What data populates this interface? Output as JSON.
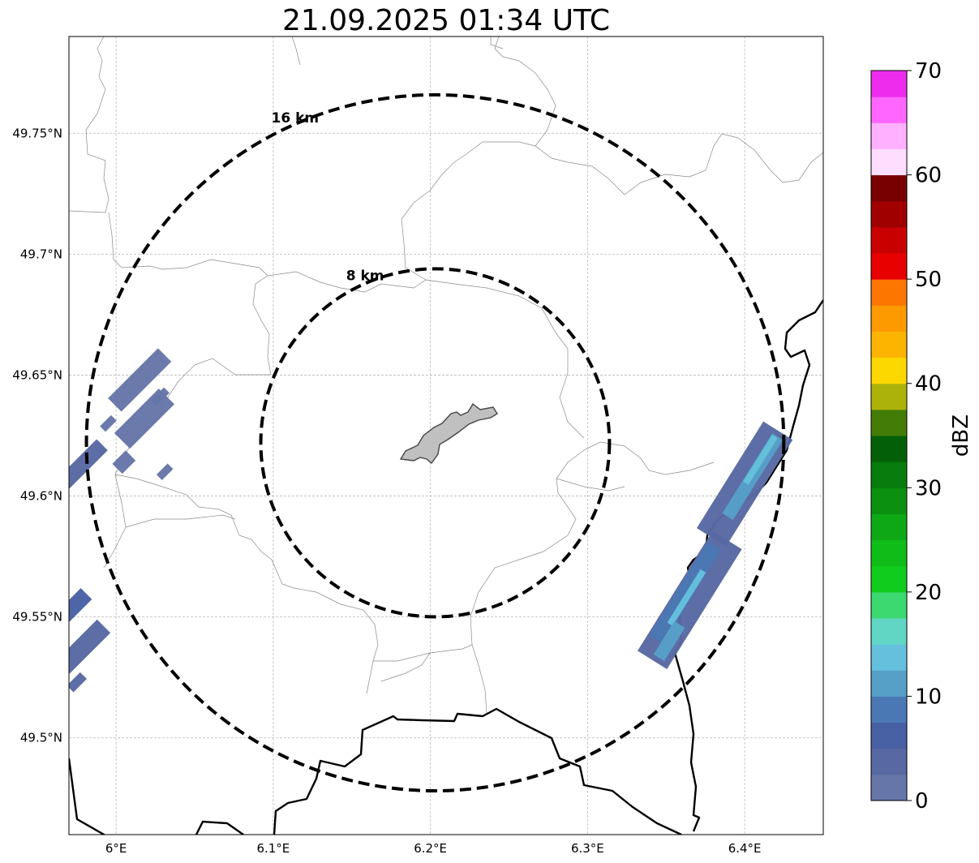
{
  "title": "21.09.2025 01:34 UTC",
  "map": {
    "lon_range": [
      5.97,
      6.45
    ],
    "lat_range": [
      49.46,
      49.79
    ],
    "lat_ticks": [
      {
        "v": 49.75,
        "label": "49.75°N"
      },
      {
        "v": 49.7,
        "label": "49.7°N"
      },
      {
        "v": 49.65,
        "label": "49.65°N"
      },
      {
        "v": 49.6,
        "label": "49.6°N"
      },
      {
        "v": 49.55,
        "label": "49.55°N"
      },
      {
        "v": 49.5,
        "label": "49.5°N"
      }
    ],
    "lon_ticks": [
      {
        "v": 6.0,
        "label": "6°E"
      },
      {
        "v": 6.1,
        "label": "6.1°E"
      },
      {
        "v": 6.2,
        "label": "6.2°E"
      },
      {
        "v": 6.3,
        "label": "6.3°E"
      },
      {
        "v": 6.4,
        "label": "6.4°E"
      }
    ],
    "range_rings": [
      {
        "label": "8 km",
        "radius_km": 8
      },
      {
        "label": "16 km",
        "radius_km": 16
      }
    ],
    "radar_center": {
      "lon": 6.203,
      "lat": 49.622
    },
    "precip_cells": [
      {
        "lon": 6.015,
        "lat": 49.648,
        "angle": 45,
        "len": 0.045,
        "wid": 0.012,
        "dbz": 2
      },
      {
        "lon": 6.018,
        "lat": 49.632,
        "angle": 45,
        "len": 0.04,
        "wid": 0.014,
        "dbz": 2
      },
      {
        "lon": 6.028,
        "lat": 49.641,
        "angle": 45,
        "len": 0.012,
        "wid": 0.005,
        "dbz": 2
      },
      {
        "lon": 6.005,
        "lat": 49.614,
        "angle": 45,
        "len": 0.012,
        "wid": 0.009,
        "dbz": 2
      },
      {
        "lon": 5.995,
        "lat": 49.63,
        "angle": 45,
        "len": 0.01,
        "wid": 0.005,
        "dbz": 2
      },
      {
        "lon": 6.031,
        "lat": 49.61,
        "angle": 45,
        "len": 0.01,
        "wid": 0.005,
        "dbz": 2
      },
      {
        "lon": 5.977,
        "lat": 49.612,
        "angle": 45,
        "len": 0.04,
        "wid": 0.01,
        "dbz": 3
      },
      {
        "lon": 5.974,
        "lat": 49.555,
        "angle": 45,
        "len": 0.02,
        "wid": 0.01,
        "dbz": 5
      },
      {
        "lon": 5.978,
        "lat": 49.537,
        "angle": 45,
        "len": 0.04,
        "wid": 0.012,
        "dbz": 3
      },
      {
        "lon": 5.975,
        "lat": 49.523,
        "angle": 45,
        "len": 0.012,
        "wid": 0.006,
        "dbz": 3
      },
      {
        "lon": 6.365,
        "lat": 49.557,
        "angle": 58,
        "len": 0.09,
        "wid": 0.022,
        "dbz": 3
      },
      {
        "lon": 6.362,
        "lat": 49.56,
        "angle": 58,
        "len": 0.07,
        "wid": 0.01,
        "dbz": 9
      },
      {
        "lon": 6.363,
        "lat": 49.558,
        "angle": 58,
        "len": 0.04,
        "wid": 0.004,
        "dbz": 14
      },
      {
        "lon": 6.352,
        "lat": 49.54,
        "angle": 58,
        "len": 0.025,
        "wid": 0.008,
        "dbz": 12
      },
      {
        "lon": 6.4,
        "lat": 49.605,
        "angle": 58,
        "len": 0.08,
        "wid": 0.022,
        "dbz": 4
      },
      {
        "lon": 6.405,
        "lat": 49.608,
        "angle": 58,
        "len": 0.06,
        "wid": 0.008,
        "dbz": 10
      },
      {
        "lon": 6.41,
        "lat": 49.615,
        "angle": 58,
        "len": 0.035,
        "wid": 0.004,
        "dbz": 13
      }
    ]
  },
  "colorbar": {
    "label": "dBZ",
    "min": 0,
    "max": 70,
    "step": 2.5,
    "ticks": [
      {
        "v": 0,
        "label": "0"
      },
      {
        "v": 10,
        "label": "10"
      },
      {
        "v": 20,
        "label": "20"
      },
      {
        "v": 30,
        "label": "30"
      },
      {
        "v": 40,
        "label": "40"
      },
      {
        "v": 50,
        "label": "50"
      },
      {
        "v": 60,
        "label": "60"
      },
      {
        "v": 70,
        "label": "70"
      }
    ],
    "colors": [
      "#6676a8",
      "#5868a2",
      "#4860a4",
      "#4a78b4",
      "#56a0c8",
      "#64c0dc",
      "#62d6c4",
      "#3cd870",
      "#10cc1c",
      "#10bc18",
      "#0ea816",
      "#0c9010",
      "#087c0c",
      "#046008",
      "#447c08",
      "#acb20a",
      "#fcd800",
      "#fcb400",
      "#fc9a00",
      "#fc7600",
      "#e80000",
      "#c80000",
      "#a00000",
      "#780000",
      "#fedeff",
      "#ffb0ff",
      "#ff66ff",
      "#ee2cee"
    ]
  }
}
